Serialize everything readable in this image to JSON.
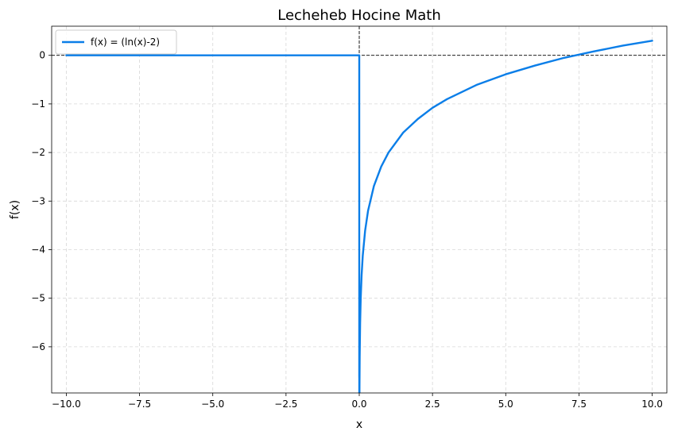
{
  "chart_data": {
    "type": "line",
    "title": "Lecheheb Hocine Math",
    "xlabel": "x",
    "ylabel": "f(x)",
    "xlim": [
      -10.5,
      10.5
    ],
    "ylim": [
      -6.95,
      0.6
    ],
    "xticks": [
      -10.0,
      -7.5,
      -5.0,
      -2.5,
      0.0,
      2.5,
      5.0,
      7.5,
      10.0
    ],
    "xtick_labels": [
      "−10.0",
      "−7.5",
      "−5.0",
      "−2.5",
      "0.0",
      "2.5",
      "5.0",
      "7.5",
      "10.0"
    ],
    "yticks": [
      0,
      -1,
      -2,
      -3,
      -4,
      -5,
      -6
    ],
    "ytick_labels": [
      "0",
      "−1",
      "−2",
      "−3",
      "−4",
      "−5",
      "−6"
    ],
    "grid": true,
    "legend_position": "top-left",
    "reference_lines": {
      "x": 0,
      "y": 0
    },
    "series": [
      {
        "name": "f(x) = (ln(x)-2)",
        "color": "#0b7ee8",
        "x": [
          -10,
          0,
          0,
          0.0013,
          0.002,
          0.004,
          0.008,
          0.015,
          0.03,
          0.05,
          0.08,
          0.12,
          0.2,
          0.3,
          0.5,
          0.75,
          1,
          1.5,
          2,
          2.5,
          3,
          4,
          5,
          6,
          7,
          8,
          9,
          10
        ],
        "y": [
          0,
          0,
          -6.6,
          -6.65,
          -8.21,
          -7.52,
          -6.83,
          -6.2,
          -5.51,
          -5.0,
          -4.53,
          -4.12,
          -3.61,
          -3.2,
          -2.69,
          -2.29,
          -2.0,
          -1.59,
          -1.31,
          -1.08,
          -0.9,
          -0.61,
          -0.39,
          -0.21,
          -0.05,
          0.08,
          0.2,
          0.3
        ]
      }
    ]
  }
}
